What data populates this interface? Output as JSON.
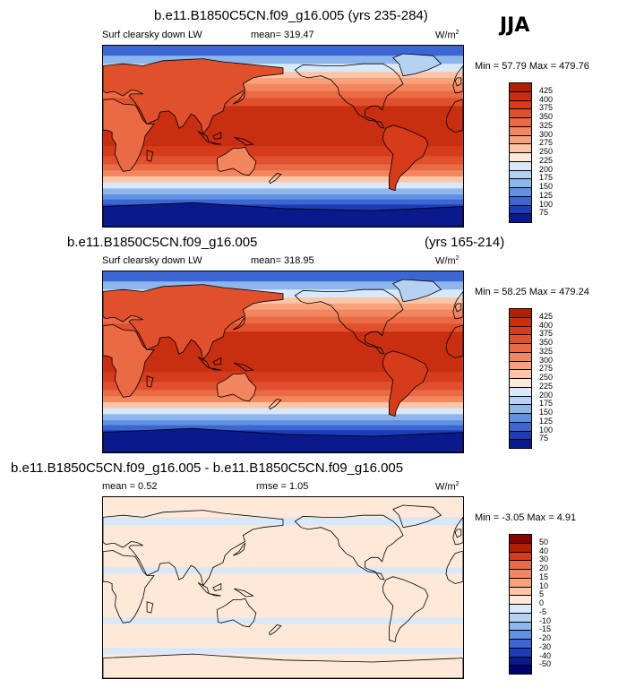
{
  "season": "JJA",
  "panels": [
    {
      "title": "b.e11.B1850C5CN.f09_g16.005 (yrs 235-284)",
      "title_right": "",
      "variable": "Surf clearsky down LW",
      "stat": "mean= 319.47",
      "stat2": "",
      "units": "W/m",
      "units_sup": "2",
      "minmax": "Min =  57.79 Max = 479.76",
      "colorbar_labels": [
        "425",
        "400",
        "375",
        "350",
        "325",
        "300",
        "275",
        "250",
        "225",
        "200",
        "175",
        "150",
        "125",
        "100",
        "75"
      ],
      "colorbar_colors": [
        "#b32000",
        "#c82e10",
        "#d63c1c",
        "#e0502c",
        "#ea6a44",
        "#f2875f",
        "#f8a27c",
        "#fcc5a6",
        "#fee8d8",
        "#d8e8f8",
        "#b6d2f2",
        "#8cb6ec",
        "#6090e0",
        "#3c66d4",
        "#1c3cb8",
        "#0a1a8c"
      ]
    },
    {
      "title": "b.e11.B1850C5CN.f09_g16.005",
      "title_right": "(yrs 165-214)",
      "variable": "Surf clearsky down LW",
      "stat": "mean= 318.95",
      "stat2": "",
      "units": "W/m",
      "units_sup": "2",
      "minmax": "Min =  58.25 Max = 479.24",
      "colorbar_labels": [
        "425",
        "400",
        "375",
        "350",
        "325",
        "300",
        "275",
        "250",
        "225",
        "200",
        "175",
        "150",
        "125",
        "100",
        "75"
      ],
      "colorbar_colors": [
        "#b32000",
        "#c82e10",
        "#d63c1c",
        "#e0502c",
        "#ea6a44",
        "#f2875f",
        "#f8a27c",
        "#fcc5a6",
        "#fee8d8",
        "#d8e8f8",
        "#b6d2f2",
        "#8cb6ec",
        "#6090e0",
        "#3c66d4",
        "#1c3cb8",
        "#0a1a8c"
      ]
    },
    {
      "title": "b.e11.B1850C5CN.f09_g16.005 - b.e11.B1850C5CN.f09_g16.005",
      "title_right": "",
      "variable": "",
      "stat": "mean =   0.52",
      "stat2": "rmse =   1.05",
      "units": "W/m",
      "units_sup": "2",
      "minmax": "Min =  -3.05 Max =   4.91",
      "colorbar_labels": [
        "50",
        "40",
        "30",
        "20",
        "15",
        "10",
        "5",
        "0",
        "-5",
        "-10",
        "-15",
        "-20",
        "-30",
        "-40",
        "-50"
      ],
      "colorbar_colors": [
        "#8c0000",
        "#b32000",
        "#d63c1c",
        "#ea6a44",
        "#f2875f",
        "#f8a27c",
        "#fcc5a6",
        "#fee8d8",
        "#d8e8f8",
        "#b6d2f2",
        "#8cb6ec",
        "#6090e0",
        "#3c66d4",
        "#1c3cb8",
        "#0a1a8c",
        "#000070"
      ]
    }
  ]
}
